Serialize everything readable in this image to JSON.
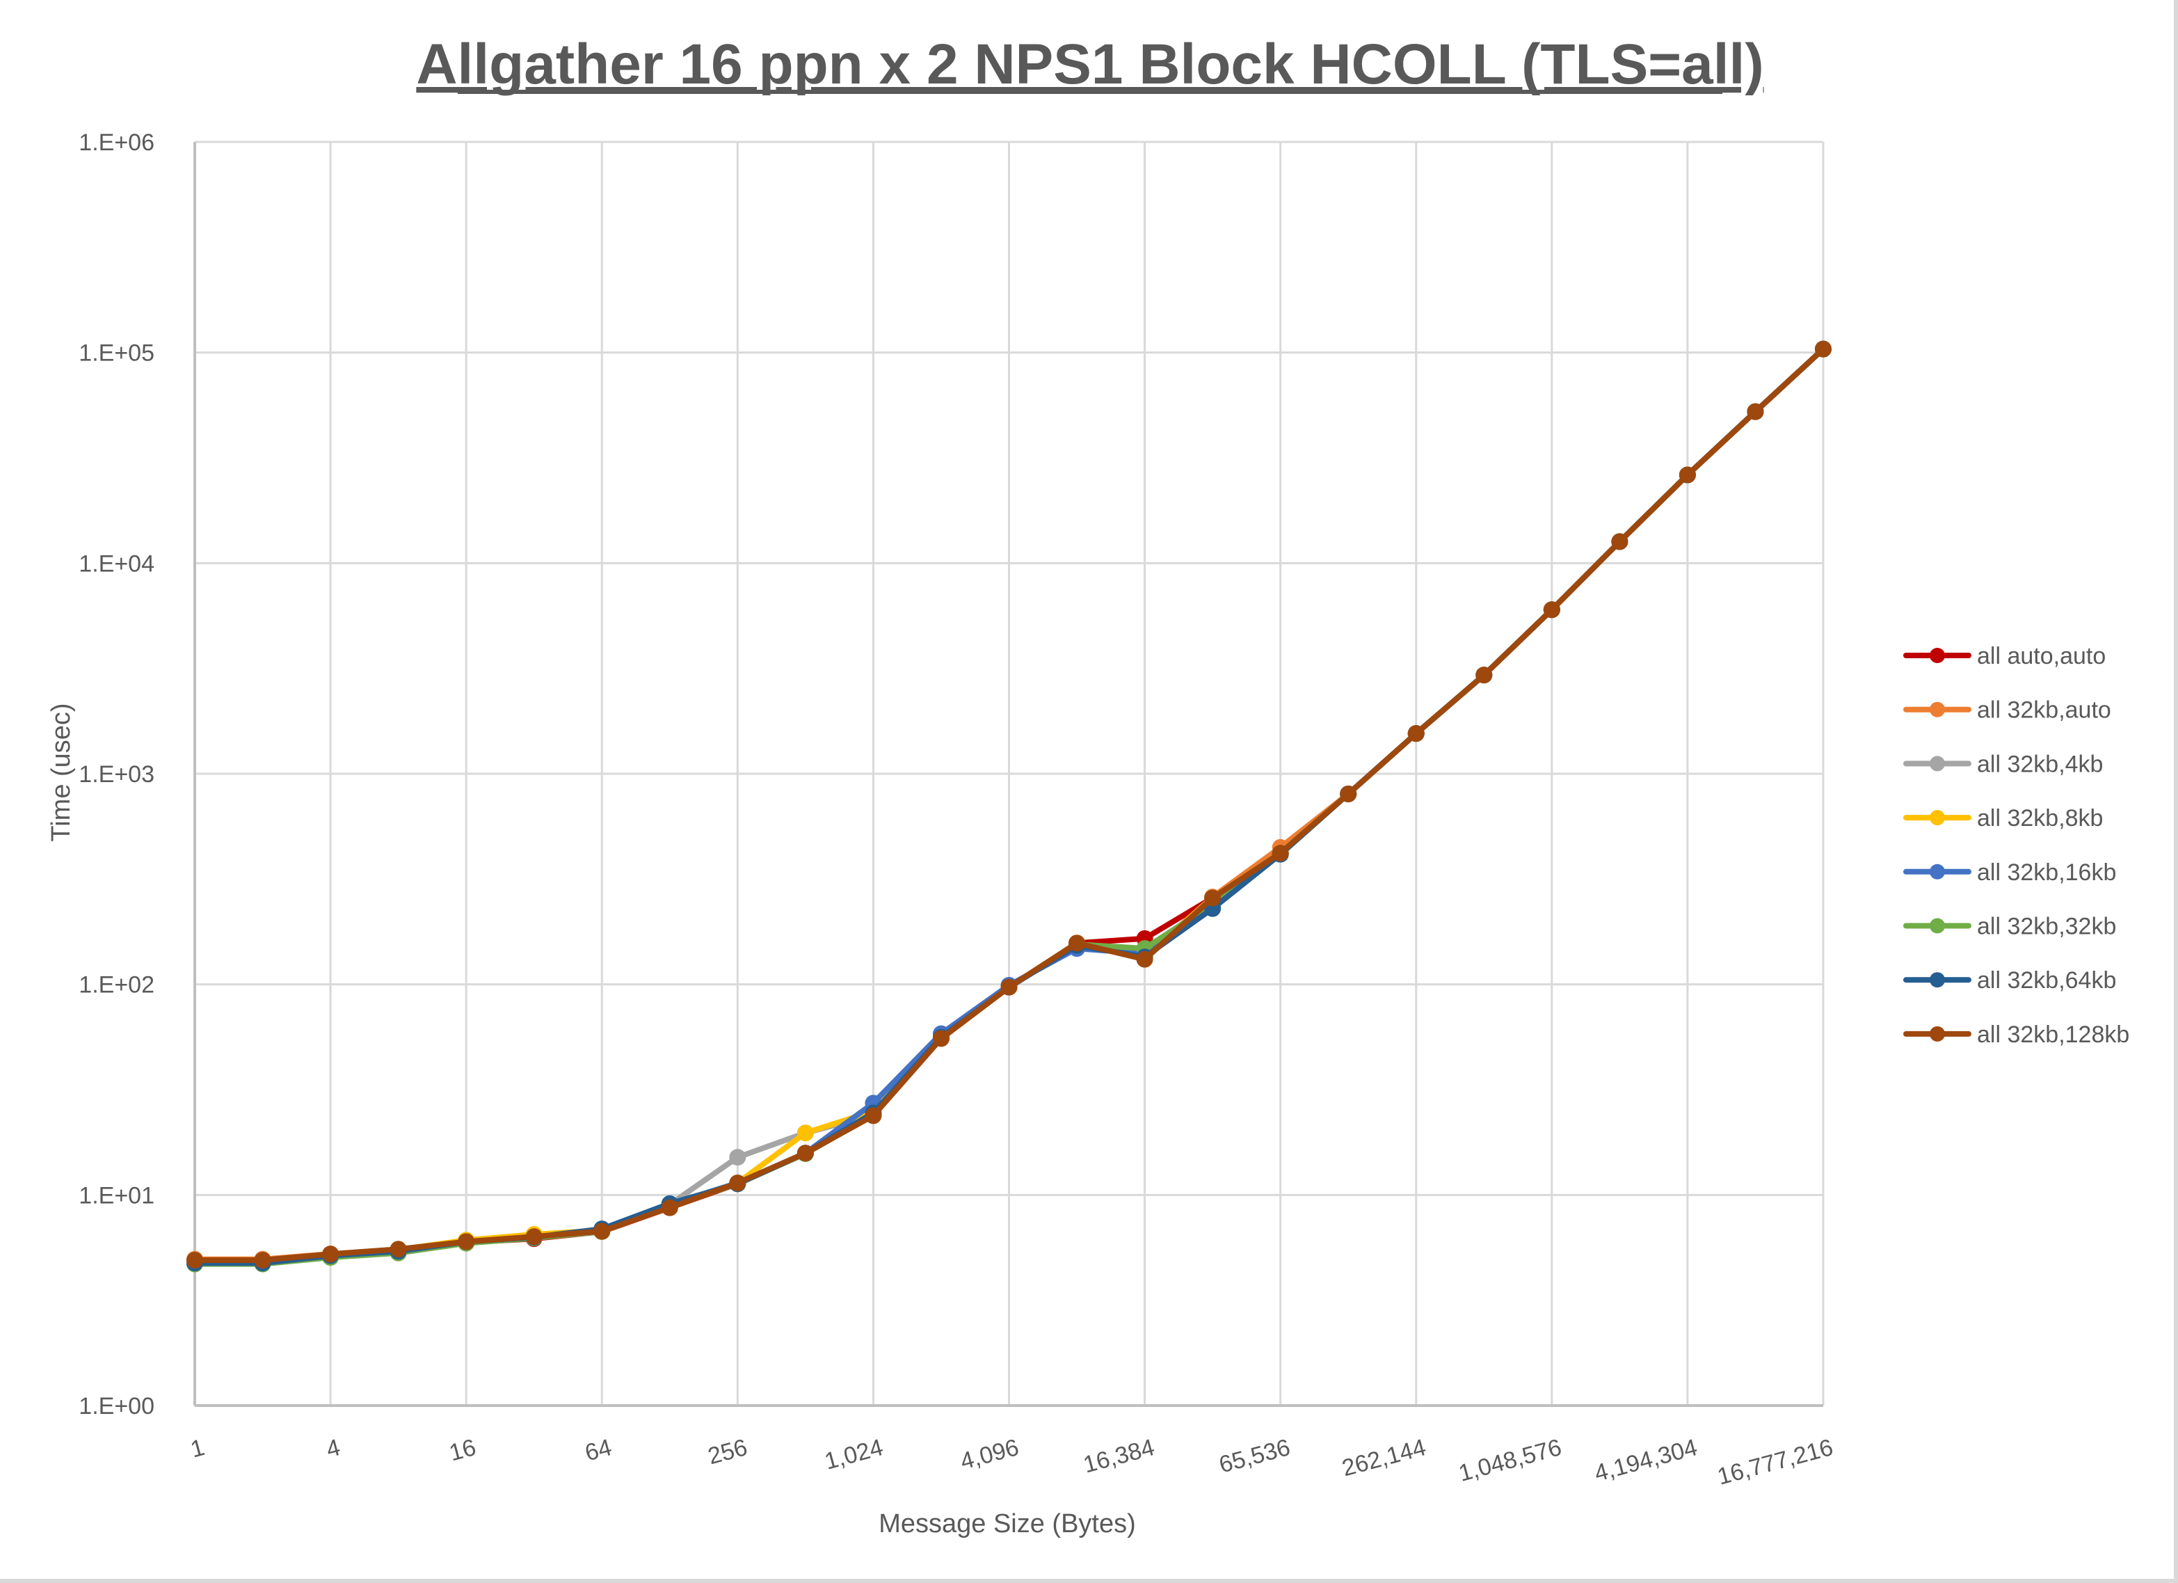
{
  "chart_data": {
    "type": "line",
    "title": "Allgather 16 ppn x 2 NPS1 Block HCOLL (TLS=all)",
    "xlabel": "Message Size (Bytes)",
    "ylabel": "Time (usec)",
    "x_scale": "log2",
    "y_scale": "log10",
    "ylim": [
      1,
      1000000
    ],
    "grid": true,
    "legend_position": "right",
    "x": [
      1,
      2,
      4,
      8,
      16,
      32,
      64,
      128,
      256,
      512,
      1024,
      2048,
      4096,
      8192,
      16384,
      32768,
      65536,
      131072,
      262144,
      524288,
      1048576,
      2097152,
      4194304,
      8388608,
      16777216
    ],
    "x_tick_labels": [
      "1",
      "4",
      "16",
      "64",
      "256",
      "1,024",
      "4,096",
      "16,384",
      "65,536",
      "262,144",
      "1,048,576",
      "4,194,304",
      "16,777,216"
    ],
    "y_tick_labels": [
      "1.E+00",
      "1.E+01",
      "1.E+02",
      "1.E+03",
      "1.E+04",
      "1.E+05",
      "1.E+06"
    ],
    "series": [
      {
        "name": "all auto,auto",
        "color": "#c00000",
        "values": [
          4.85,
          4.85,
          5.2,
          5.45,
          5.95,
          6.2,
          6.7,
          8.7,
          11.3,
          15.8,
          24,
          55.5,
          97,
          157,
          165,
          257,
          420,
          802,
          1553,
          2942,
          6010,
          12650,
          26240,
          52400,
          103900
        ]
      },
      {
        "name": "all 32kb,auto",
        "color": "#ed7d31",
        "values": [
          4.95,
          4.95,
          5.25,
          5.5,
          6.0,
          6.35,
          6.75,
          8.7,
          11.4,
          15.8,
          24,
          55.5,
          97,
          157,
          135,
          260,
          447,
          802,
          1553,
          2942,
          6010,
          12650,
          26240,
          52400,
          103900
        ]
      },
      {
        "name": "all 32kb,4kb",
        "color": "#a5a5a5",
        "values": [
          4.8,
          4.8,
          5.15,
          5.4,
          5.95,
          6.3,
          6.75,
          9.0,
          15.1,
          19.7,
          24,
          55.5,
          97,
          157,
          135,
          257,
          420,
          802,
          1553,
          2942,
          6010,
          12650,
          26240,
          52400,
          103900
        ]
      },
      {
        "name": "all 32kb,8kb",
        "color": "#ffc000",
        "values": [
          4.85,
          4.85,
          5.2,
          5.5,
          6.1,
          6.5,
          6.8,
          8.8,
          11.4,
          19.7,
          25,
          55.5,
          97,
          157,
          135,
          257,
          420,
          802,
          1553,
          2942,
          6010,
          12650,
          26240,
          52400,
          103900
        ]
      },
      {
        "name": "all 32kb,16kb",
        "color": "#4472c4",
        "values": [
          4.75,
          4.75,
          5.1,
          5.35,
          5.95,
          6.3,
          6.8,
          9.0,
          11.4,
          15.8,
          27.3,
          58.3,
          99,
          148,
          140,
          230,
          415,
          802,
          1553,
          2942,
          6010,
          12650,
          26240,
          52400,
          103900
        ]
      },
      {
        "name": "all 32kb,32kb",
        "color": "#70ad47",
        "values": [
          4.7,
          4.7,
          5.05,
          5.3,
          5.9,
          6.25,
          6.7,
          8.8,
          11.3,
          15.7,
          24,
          55.5,
          97,
          155,
          148,
          240,
          415,
          802,
          1553,
          2942,
          6010,
          12650,
          26240,
          52400,
          103900
        ]
      },
      {
        "name": "all 32kb,64kb",
        "color": "#255e91",
        "values": [
          4.75,
          4.75,
          5.15,
          5.4,
          6.0,
          6.3,
          6.9,
          9.1,
          11.3,
          15.8,
          24.5,
          56,
          97,
          153,
          135,
          229,
          415,
          802,
          1553,
          2942,
          6010,
          12650,
          26240,
          52400,
          103900
        ]
      },
      {
        "name": "all 32kb,128kb",
        "color": "#9e480e",
        "values": [
          4.9,
          4.9,
          5.24,
          5.53,
          6.0,
          6.34,
          6.73,
          8.7,
          11.4,
          15.8,
          23.8,
          55.3,
          97,
          157,
          131.5,
          257,
          420,
          802,
          1553,
          2942,
          6010,
          12650,
          26240,
          52400,
          103900
        ]
      }
    ]
  }
}
